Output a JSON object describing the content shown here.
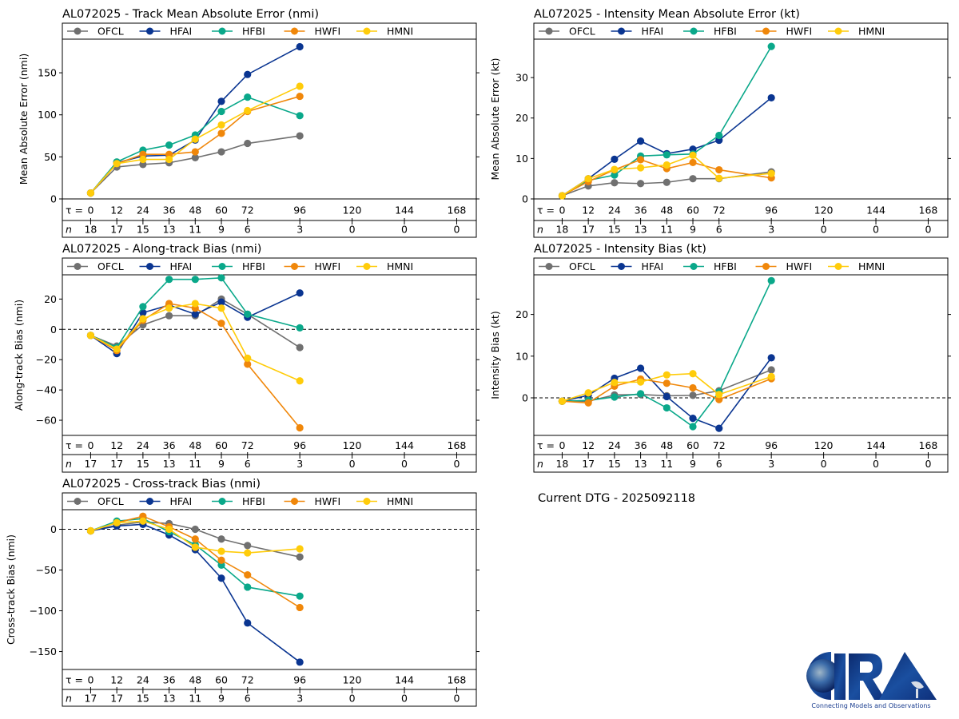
{
  "footer": {
    "dtg_text": "Current DTG - 2025092118",
    "logo_name": "CIRA",
    "logo_tagline": "Connecting Models and Observations"
  },
  "colors": {
    "OFCL": "#707070",
    "HFAI": "#0a3591",
    "HFBI": "#0aa88a",
    "HWFI": "#f0870a",
    "HMNI": "#ffcc0a"
  },
  "tau_label": "τ = ",
  "n_label": "n",
  "chart_data": [
    {
      "id": "track-mae",
      "type": "line",
      "title": "AL072025 - Track Mean Absolute Error (nmi)",
      "ylabel": "Mean Absolute Error (nmi)",
      "xlabel": "",
      "ylim": [
        0,
        190
      ],
      "yticks": [
        0,
        50,
        100,
        150
      ],
      "zero_line": false,
      "legend": "top",
      "grid": false,
      "x": [
        0,
        12,
        24,
        36,
        48,
        60,
        72,
        96
      ],
      "tau_ticks": [
        0,
        12,
        24,
        36,
        48,
        60,
        72,
        96,
        120,
        144,
        168
      ],
      "n_counts": [
        18,
        17,
        15,
        13,
        11,
        9,
        6,
        3,
        0,
        0,
        0
      ],
      "series": [
        {
          "name": "OFCL",
          "values": [
            7,
            38,
            41,
            43,
            49,
            56,
            66,
            75
          ]
        },
        {
          "name": "HFAI",
          "values": [
            7,
            43,
            51,
            52,
            70,
            116,
            148,
            181
          ]
        },
        {
          "name": "HFBI",
          "values": [
            7,
            44,
            58,
            64,
            76,
            104,
            121,
            99
          ]
        },
        {
          "name": "HWFI",
          "values": [
            7,
            42,
            53,
            53,
            56,
            78,
            104,
            122
          ]
        },
        {
          "name": "HMNI",
          "values": [
            7,
            42,
            47,
            47,
            71,
            88,
            105,
            134
          ]
        }
      ]
    },
    {
      "id": "intensity-mae",
      "type": "line",
      "title": "AL072025 - Intensity Mean Absolute Error (kt)",
      "ylabel": "Mean Absolute Error (kt)",
      "xlabel": "",
      "ylim": [
        0,
        39.5
      ],
      "yticks": [
        0,
        10,
        20,
        30
      ],
      "zero_line": false,
      "legend": "top",
      "grid": false,
      "x": [
        0,
        12,
        24,
        36,
        48,
        60,
        72,
        96
      ],
      "tau_ticks": [
        0,
        12,
        24,
        36,
        48,
        60,
        72,
        96,
        120,
        144,
        168
      ],
      "n_counts": [
        18,
        17,
        15,
        13,
        11,
        9,
        6,
        3,
        0,
        0,
        0
      ],
      "series": [
        {
          "name": "OFCL",
          "values": [
            0.8,
            3.2,
            4.0,
            3.8,
            4.1,
            5.0,
            5.0,
            6.7
          ]
        },
        {
          "name": "HFAI",
          "values": [
            0.8,
            5.0,
            9.8,
            14.3,
            11.2,
            12.3,
            14.5,
            25.0
          ]
        },
        {
          "name": "HFBI",
          "values": [
            0.8,
            4.6,
            5.9,
            10.6,
            10.9,
            11.1,
            15.7,
            37.7
          ]
        },
        {
          "name": "HWFI",
          "values": [
            0.8,
            4.3,
            7.2,
            9.7,
            7.5,
            9.0,
            7.2,
            5.2
          ]
        },
        {
          "name": "HMNI",
          "values": [
            0.8,
            5.0,
            7.3,
            7.7,
            8.4,
            10.8,
            5.1,
            6.3
          ]
        }
      ]
    },
    {
      "id": "along-track-bias",
      "type": "line",
      "title": "AL072025 - Along-track Bias (nmi)",
      "ylabel": "Along-track Bias (nmi)",
      "xlabel": "",
      "ylim": [
        -70,
        36
      ],
      "yticks": [
        -60,
        -40,
        -20,
        0,
        20
      ],
      "zero_line": true,
      "legend": "top",
      "grid": false,
      "x": [
        0,
        12,
        24,
        36,
        48,
        60,
        72,
        96
      ],
      "tau_ticks": [
        0,
        12,
        24,
        36,
        48,
        60,
        72,
        96,
        120,
        144,
        168
      ],
      "n_counts": [
        17,
        17,
        15,
        13,
        11,
        9,
        6,
        3,
        0,
        0,
        0
      ],
      "series": [
        {
          "name": "OFCL",
          "values": [
            -4,
            -11,
            3,
            9,
            9,
            20,
            10,
            -12
          ]
        },
        {
          "name": "HFAI",
          "values": [
            -4,
            -16,
            11,
            16,
            10,
            18,
            8,
            24
          ]
        },
        {
          "name": "HFBI",
          "values": [
            -4,
            -12,
            15,
            33,
            33,
            34,
            10,
            1
          ]
        },
        {
          "name": "HWFI",
          "values": [
            -4,
            -14,
            6,
            17,
            14,
            4,
            -23,
            -65
          ]
        },
        {
          "name": "HMNI",
          "values": [
            -4,
            -13,
            7,
            14,
            17,
            14,
            -19,
            -34
          ]
        }
      ]
    },
    {
      "id": "intensity-bias",
      "type": "line",
      "title": "AL072025 - Intensity Bias (kt)",
      "ylabel": "Intensity Bias (kt)",
      "xlabel": "",
      "ylim": [
        -9,
        29.5
      ],
      "yticks": [
        0,
        10,
        20
      ],
      "zero_line": true,
      "legend": "top",
      "grid": false,
      "x": [
        0,
        12,
        24,
        36,
        48,
        60,
        72,
        96
      ],
      "tau_ticks": [
        0,
        12,
        24,
        36,
        48,
        60,
        72,
        96,
        120,
        144,
        168
      ],
      "n_counts": [
        18,
        17,
        15,
        13,
        11,
        9,
        6,
        3,
        0,
        0,
        0
      ],
      "series": [
        {
          "name": "OFCL",
          "values": [
            -0.8,
            -0.8,
            0.7,
            0.8,
            0.5,
            0.6,
            1.7,
            6.7
          ]
        },
        {
          "name": "HFAI",
          "values": [
            -0.8,
            0.6,
            4.7,
            7.1,
            0.3,
            -4.9,
            -7.3,
            9.6
          ]
        },
        {
          "name": "HFBI",
          "values": [
            -0.8,
            -0.6,
            0.2,
            1.0,
            -2.4,
            -6.9,
            1.4,
            28.1
          ]
        },
        {
          "name": "HWFI",
          "values": [
            -0.8,
            -1.2,
            2.8,
            4.5,
            3.5,
            2.4,
            -0.4,
            4.6
          ]
        },
        {
          "name": "HMNI",
          "values": [
            -0.8,
            1.2,
            3.7,
            3.8,
            5.5,
            5.8,
            0.8,
            5.1
          ]
        }
      ]
    },
    {
      "id": "cross-track-bias",
      "type": "line",
      "title": "AL072025 - Cross-track Bias (nmi)",
      "ylabel": "Cross-track Bias (nmi)",
      "xlabel": "",
      "ylim": [
        -172,
        24
      ],
      "yticks": [
        -150,
        -100,
        -50,
        0
      ],
      "zero_line": true,
      "legend": "top",
      "grid": false,
      "x": [
        0,
        12,
        24,
        36,
        48,
        60,
        72,
        96
      ],
      "tau_ticks": [
        0,
        12,
        24,
        36,
        48,
        60,
        72,
        96,
        120,
        144,
        168
      ],
      "n_counts": [
        17,
        17,
        15,
        13,
        11,
        9,
        6,
        3,
        0,
        0,
        0
      ],
      "series": [
        {
          "name": "OFCL",
          "values": [
            -2,
            5,
            9,
            7,
            0,
            -12,
            -20,
            -34
          ]
        },
        {
          "name": "HFAI",
          "values": [
            -2,
            4,
            6,
            -7,
            -25,
            -60,
            -115,
            -163
          ]
        },
        {
          "name": "HFBI",
          "values": [
            -2,
            10,
            13,
            -3,
            -19,
            -44,
            -71,
            -82
          ]
        },
        {
          "name": "HWFI",
          "values": [
            -2,
            8,
            16,
            3,
            -12,
            -38,
            -56,
            -96
          ]
        },
        {
          "name": "HMNI",
          "values": [
            -2,
            8,
            10,
            0,
            -22,
            -27,
            -29,
            -24
          ]
        }
      ]
    }
  ]
}
